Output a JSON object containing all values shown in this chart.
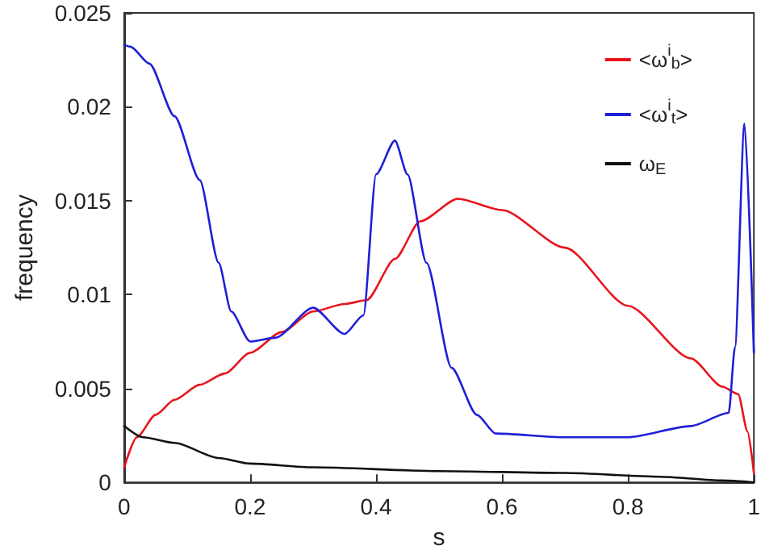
{
  "chart_data": {
    "type": "line",
    "xlabel": "s",
    "ylabel": "frequency",
    "xlim": [
      0,
      1
    ],
    "xticks": [
      0,
      0.2,
      0.4,
      0.6,
      0.8,
      1
    ],
    "ylim": [
      0,
      0.025
    ],
    "yticks": [
      0,
      0.005,
      0.01,
      0.015,
      0.02,
      0.025
    ],
    "grid": false,
    "legend": "top right",
    "marker": "none",
    "line_style": "solid",
    "series": [
      {
        "name": "<ω$^{i}$$_{b}$>",
        "color": "#e8141c",
        "x": [
          0,
          0.02,
          0.05,
          0.08,
          0.12,
          0.16,
          0.2,
          0.25,
          0.3,
          0.35,
          0.385,
          0.43,
          0.47,
          0.53,
          0.6,
          0.7,
          0.8,
          0.9,
          0.95,
          0.975,
          0.99,
          1
        ],
        "values": [
          0.0008,
          0.0024,
          0.0036,
          0.0044,
          0.0052,
          0.0058,
          0.0069,
          0.008,
          0.0091,
          0.0095,
          0.0097,
          0.0119,
          0.0139,
          0.0151,
          0.0145,
          0.0125,
          0.0094,
          0.0066,
          0.0051,
          0.0047,
          0.0027,
          0.0005
        ]
      },
      {
        "name": "<ω$^{i}$$_{t}$>",
        "color": "#1f1fd8",
        "x": [
          0,
          0.01,
          0.04,
          0.08,
          0.12,
          0.15,
          0.17,
          0.2,
          0.24,
          0.3,
          0.35,
          0.38,
          0.4,
          0.43,
          0.45,
          0.48,
          0.52,
          0.56,
          0.59,
          0.7,
          0.8,
          0.9,
          0.96,
          0.97,
          0.985,
          1
        ],
        "values": [
          0.0233,
          0.0232,
          0.0223,
          0.0195,
          0.0161,
          0.0117,
          0.0091,
          0.0075,
          0.0077,
          0.0093,
          0.0079,
          0.0089,
          0.0164,
          0.0182,
          0.0164,
          0.0117,
          0.0061,
          0.0036,
          0.0026,
          0.0024,
          0.0024,
          0.003,
          0.0037,
          0.0072,
          0.0191,
          0.0069
        ]
      },
      {
        "name": "ω$_{E}$",
        "color": "#111111",
        "x": [
          0,
          0.03,
          0.08,
          0.15,
          0.2,
          0.3,
          0.5,
          0.7,
          0.85,
          0.95,
          1
        ],
        "values": [
          0.003,
          0.0024,
          0.0021,
          0.0013,
          0.001,
          0.0008,
          0.0006,
          0.0005,
          0.0003,
          0.0001,
          0
        ]
      }
    ]
  }
}
